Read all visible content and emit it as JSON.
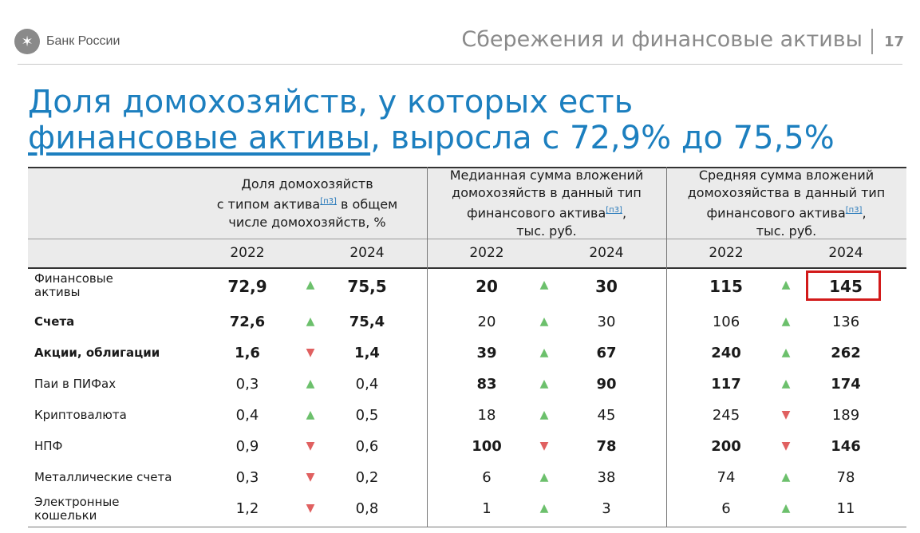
{
  "header": {
    "brand": "Банк России",
    "section": "Сбережения и финансовые активы",
    "page": "17"
  },
  "headline": {
    "part1": "Доля домохозяйств, у которых есть",
    "link": "финансовые активы",
    "part2": ", выросла с 72,9% до 75,5%"
  },
  "table": {
    "groups": [
      {
        "lines": [
          "Доля домохозяйств",
          "с типом актива",
          "в общем",
          "числе домохозяйств, %"
        ],
        "ref": "[п3]"
      },
      {
        "lines": [
          "Медианная сумма вложений",
          "домохозяйств  в данный тип",
          "финансового актива",
          ",",
          "тыс. руб."
        ],
        "ref": "[п3]"
      },
      {
        "lines": [
          "Средняя сумма вложений",
          "домохозяйства в данный тип",
          "финансового актива",
          ",",
          "тыс. руб."
        ],
        "ref": "[п3]"
      }
    ],
    "years": [
      "2022",
      "2024",
      "2022",
      "2024",
      "2022",
      "2024"
    ],
    "rows": [
      {
        "label": "Финансовые активы",
        "label1": "Финансовые",
        "label2": "активы",
        "v": [
          "72,9",
          "75,5",
          "20",
          "30",
          "115",
          "145"
        ],
        "dir": [
          "up",
          "up",
          "up"
        ]
      },
      {
        "label": "Счета",
        "v": [
          "72,6",
          "75,4",
          "20",
          "30",
          "106",
          "136"
        ],
        "dir": [
          "up",
          "up",
          "up"
        ]
      },
      {
        "label": "Акции, облигации",
        "v": [
          "1,6",
          "1,4",
          "39",
          "67",
          "240",
          "262"
        ],
        "dir": [
          "down",
          "up",
          "up"
        ]
      },
      {
        "label": "Паи в ПИФах",
        "v": [
          "0,3",
          "0,4",
          "83",
          "90",
          "117",
          "174"
        ],
        "dir": [
          "up",
          "up",
          "up"
        ]
      },
      {
        "label": "Криптовалюта",
        "v": [
          "0,4",
          "0,5",
          "18",
          "45",
          "245",
          "189"
        ],
        "dir": [
          "up",
          "up",
          "down"
        ]
      },
      {
        "label": "НПФ",
        "v": [
          "0,9",
          "0,6",
          "100",
          "78",
          "200",
          "146"
        ],
        "dir": [
          "down",
          "down",
          "down"
        ]
      },
      {
        "label": "Металлические счета",
        "v": [
          "0,3",
          "0,2",
          "6",
          "38",
          "74",
          "78"
        ],
        "dir": [
          "down",
          "up",
          "up"
        ]
      },
      {
        "label": "Электронные кошельки",
        "label1": "Электронные",
        "label2": "кошельки",
        "v": [
          "1,2",
          "0,8",
          "1",
          "3",
          "6",
          "11"
        ],
        "dir": [
          "down",
          "up",
          "up"
        ]
      }
    ],
    "arrows": {
      "up": "▲",
      "down": "▼"
    },
    "highlight_color": "#d21a1a",
    "accent": "#1c7fbf"
  }
}
